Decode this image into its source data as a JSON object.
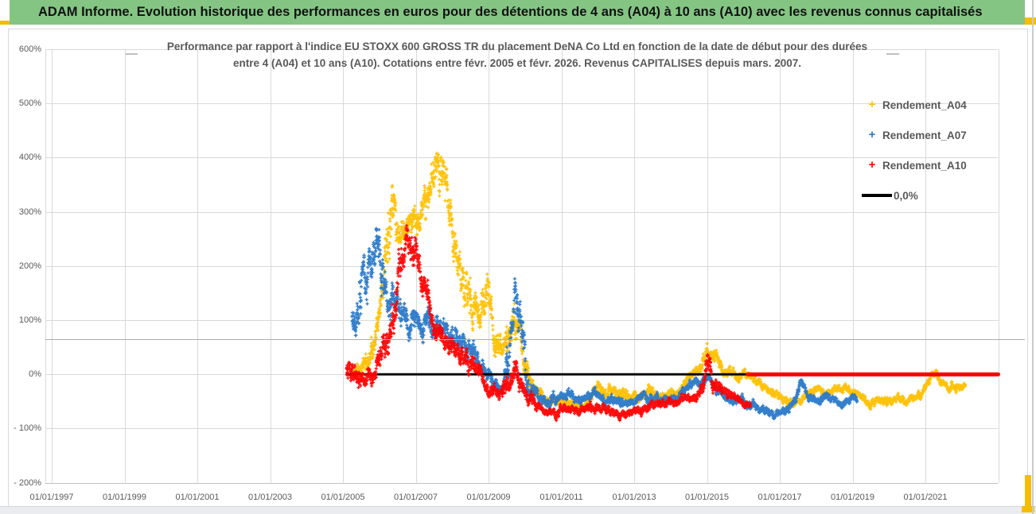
{
  "title_bar": {
    "text": "ADAM Informe. Evolution historique des performances en euros pour des détentions de 4 ans (A04) à 10 ans (A10) avec les revenus connus capitalisés",
    "bg_color": "#84C584",
    "accent_color": "#F6BC00"
  },
  "chart": {
    "title_line1": "Performance par rapport à l'indice EU STOXX 600 GROSS TR  du placement DeNA Co Ltd en fonction de la date de début pour des durées",
    "title_line2": "entre 4 (A04) et 10 ans (A10). Cotations entre févr. 2005 et févr. 2026. Revenus CAPITALISES depuis mars. 2007.",
    "legend": [
      {
        "label": "Rendement_A04",
        "marker": "plus",
        "color": "#FFC000"
      },
      {
        "label": "Rendement_A07",
        "marker": "plus",
        "color": "#2878C8"
      },
      {
        "label": "Rendement_A10",
        "marker": "plus",
        "color": "#FF0000"
      },
      {
        "label": "0,0%",
        "marker": "line",
        "color": "#000000"
      }
    ]
  },
  "chart_data": {
    "type": "scatter",
    "x_axis": {
      "tick_labels": [
        "01/01/1997",
        "01/01/1999",
        "01/01/2001",
        "01/01/2003",
        "01/01/2005",
        "01/01/2007",
        "01/01/2009",
        "01/01/2011",
        "01/01/2013",
        "01/01/2015",
        "01/01/2017",
        "01/01/2019",
        "01/01/2021"
      ],
      "tick_years": [
        1997,
        1999,
        2001,
        2003,
        2005,
        2007,
        2009,
        2011,
        2013,
        2015,
        2017,
        2019,
        2021
      ],
      "min_year": 1996.82,
      "max_year": 2023.0
    },
    "y_axis": {
      "tick_labels": [
        "600%",
        "500%",
        "400%",
        "300%",
        "200%",
        "100%",
        "0%",
        "- 100%",
        "- 200%"
      ],
      "tick_values": [
        600,
        500,
        400,
        300,
        200,
        100,
        0,
        -100,
        -200
      ],
      "min": -200,
      "max": 600,
      "unit": "%"
    },
    "grid_color": "#D9D9D9",
    "zero_line": {
      "label": "0,0%",
      "value": 0,
      "from_year": 2005.08,
      "to_year": 2022.85,
      "color": "#000000",
      "width": 2.8
    },
    "series": [
      {
        "name": "Rendement_A04",
        "color": "#FFC000",
        "seed": 11,
        "clip": [
          -80,
          493
        ],
        "keypoints": [
          [
            2005.3,
            0,
            25
          ],
          [
            2005.7,
            25,
            30
          ],
          [
            2005.95,
            90,
            45
          ],
          [
            2006.1,
            200,
            70
          ],
          [
            2006.3,
            360,
            130
          ],
          [
            2006.55,
            270,
            50
          ],
          [
            2006.9,
            280,
            45
          ],
          [
            2007.15,
            285,
            45
          ],
          [
            2007.35,
            320,
            60
          ],
          [
            2007.55,
            400,
            55
          ],
          [
            2007.75,
            370,
            60
          ],
          [
            2008.0,
            260,
            60
          ],
          [
            2008.25,
            170,
            60
          ],
          [
            2008.55,
            130,
            60
          ],
          [
            2008.8,
            120,
            55
          ],
          [
            2009.0,
            160,
            60
          ],
          [
            2009.15,
            60,
            45
          ],
          [
            2009.4,
            40,
            35
          ],
          [
            2009.7,
            110,
            60
          ],
          [
            2009.95,
            30,
            40
          ],
          [
            2010.15,
            -10,
            25
          ],
          [
            2010.45,
            -45,
            18
          ],
          [
            2010.8,
            -50,
            15
          ],
          [
            2011.2,
            -52,
            15
          ],
          [
            2011.6,
            -60,
            15
          ],
          [
            2011.95,
            -30,
            18
          ],
          [
            2012.2,
            -35,
            18
          ],
          [
            2012.55,
            -28,
            18
          ],
          [
            2012.85,
            -40,
            18
          ],
          [
            2013.1,
            -45,
            15
          ],
          [
            2013.35,
            -32,
            15
          ],
          [
            2013.7,
            -45,
            15
          ],
          [
            2014.0,
            -38,
            14
          ],
          [
            2014.4,
            -18,
            14
          ],
          [
            2014.75,
            10,
            18
          ],
          [
            2015.0,
            35,
            20
          ],
          [
            2015.25,
            30,
            18
          ],
          [
            2015.55,
            5,
            15
          ],
          [
            2015.8,
            -5,
            15
          ],
          [
            2016.1,
            0,
            15
          ],
          [
            2016.4,
            -15,
            13
          ],
          [
            2016.75,
            -30,
            13
          ],
          [
            2017.1,
            -50,
            12
          ],
          [
            2017.4,
            -52,
            12
          ],
          [
            2017.7,
            -38,
            12
          ],
          [
            2018.0,
            -30,
            12
          ],
          [
            2018.4,
            -32,
            12
          ],
          [
            2018.8,
            -25,
            12
          ],
          [
            2019.1,
            -30,
            12
          ],
          [
            2019.45,
            -55,
            12
          ],
          [
            2019.8,
            -48,
            12
          ],
          [
            2020.2,
            -48,
            12
          ],
          [
            2020.6,
            -45,
            12
          ],
          [
            2020.9,
            -35,
            12
          ],
          [
            2021.1,
            -10,
            15
          ],
          [
            2021.25,
            8,
            14
          ],
          [
            2021.45,
            -18,
            12
          ],
          [
            2021.75,
            -25,
            12
          ],
          [
            2022.1,
            -22,
            12
          ]
        ]
      },
      {
        "name": "Rendement_A07",
        "color": "#2878C8",
        "seed": 22,
        "clip": [
          -86,
          302
        ],
        "keypoints": [
          [
            2005.25,
            110,
            60
          ],
          [
            2005.55,
            170,
            80
          ],
          [
            2005.8,
            230,
            70
          ],
          [
            2006.0,
            220,
            65
          ],
          [
            2006.25,
            150,
            55
          ],
          [
            2006.55,
            110,
            45
          ],
          [
            2006.9,
            95,
            40
          ],
          [
            2007.2,
            85,
            35
          ],
          [
            2007.55,
            95,
            40
          ],
          [
            2007.9,
            75,
            35
          ],
          [
            2008.2,
            60,
            35
          ],
          [
            2008.55,
            40,
            30
          ],
          [
            2008.85,
            15,
            25
          ],
          [
            2009.1,
            -15,
            20
          ],
          [
            2009.35,
            -30,
            18
          ],
          [
            2009.55,
            30,
            60
          ],
          [
            2009.75,
            160,
            60
          ],
          [
            2009.9,
            90,
            70
          ],
          [
            2010.1,
            -25,
            30
          ],
          [
            2010.4,
            -50,
            15
          ],
          [
            2010.8,
            -45,
            15
          ],
          [
            2011.2,
            -38,
            15
          ],
          [
            2011.55,
            -50,
            14
          ],
          [
            2011.9,
            -35,
            15
          ],
          [
            2012.25,
            -48,
            14
          ],
          [
            2012.6,
            -48,
            14
          ],
          [
            2012.95,
            -55,
            13
          ],
          [
            2013.25,
            -38,
            14
          ],
          [
            2013.6,
            -45,
            14
          ],
          [
            2013.95,
            -50,
            13
          ],
          [
            2014.3,
            -32,
            13
          ],
          [
            2014.7,
            -15,
            13
          ],
          [
            2015.0,
            -5,
            13
          ],
          [
            2015.3,
            -30,
            13
          ],
          [
            2015.65,
            -48,
            13
          ],
          [
            2016.0,
            -52,
            13
          ],
          [
            2016.4,
            -62,
            13
          ],
          [
            2016.8,
            -72,
            12
          ],
          [
            2017.1,
            -70,
            12
          ],
          [
            2017.35,
            -55,
            14
          ],
          [
            2017.6,
            -10,
            14
          ],
          [
            2017.8,
            -42,
            14
          ],
          [
            2018.05,
            -48,
            13
          ],
          [
            2018.3,
            -40,
            13
          ],
          [
            2018.6,
            -50,
            13
          ],
          [
            2018.9,
            -47,
            12
          ],
          [
            2019.12,
            -45,
            12
          ]
        ]
      },
      {
        "name": "Rendement_A10",
        "color": "#FF0000",
        "seed": 33,
        "clip": [
          -88,
          286
        ],
        "flat_segment": {
          "from_year": 2016.12,
          "to_year": 2023.0,
          "value": 0,
          "width": 5
        },
        "keypoints": [
          [
            2005.1,
            5,
            42
          ],
          [
            2005.45,
            -8,
            32
          ],
          [
            2005.75,
            -12,
            28
          ],
          [
            2006.0,
            15,
            35
          ],
          [
            2006.25,
            60,
            45
          ],
          [
            2006.5,
            160,
            70
          ],
          [
            2006.75,
            235,
            50
          ],
          [
            2007.0,
            230,
            50
          ],
          [
            2007.2,
            170,
            50
          ],
          [
            2007.45,
            95,
            40
          ],
          [
            2007.7,
            70,
            30
          ],
          [
            2008.0,
            55,
            30
          ],
          [
            2008.3,
            30,
            28
          ],
          [
            2008.6,
            15,
            25
          ],
          [
            2008.9,
            -15,
            22
          ],
          [
            2009.1,
            -30,
            20
          ],
          [
            2009.3,
            -45,
            18
          ],
          [
            2009.55,
            -15,
            35
          ],
          [
            2009.7,
            5,
            42
          ],
          [
            2009.9,
            -20,
            30
          ],
          [
            2010.15,
            -45,
            20
          ],
          [
            2010.45,
            -65,
            14
          ],
          [
            2010.8,
            -68,
            13
          ],
          [
            2011.15,
            -65,
            13
          ],
          [
            2011.5,
            -70,
            12
          ],
          [
            2011.85,
            -58,
            14
          ],
          [
            2012.2,
            -65,
            13
          ],
          [
            2012.6,
            -72,
            13
          ],
          [
            2012.95,
            -72,
            12
          ],
          [
            2013.3,
            -62,
            13
          ],
          [
            2013.65,
            -55,
            13
          ],
          [
            2014.0,
            -52,
            12
          ],
          [
            2014.4,
            -45,
            13
          ],
          [
            2014.8,
            -42,
            14
          ],
          [
            2015.05,
            10,
            42
          ],
          [
            2015.25,
            -20,
            25
          ],
          [
            2015.5,
            -40,
            15
          ],
          [
            2015.8,
            -45,
            14
          ],
          [
            2016.05,
            -52,
            12
          ],
          [
            2016.2,
            -55,
            10
          ]
        ]
      }
    ]
  }
}
